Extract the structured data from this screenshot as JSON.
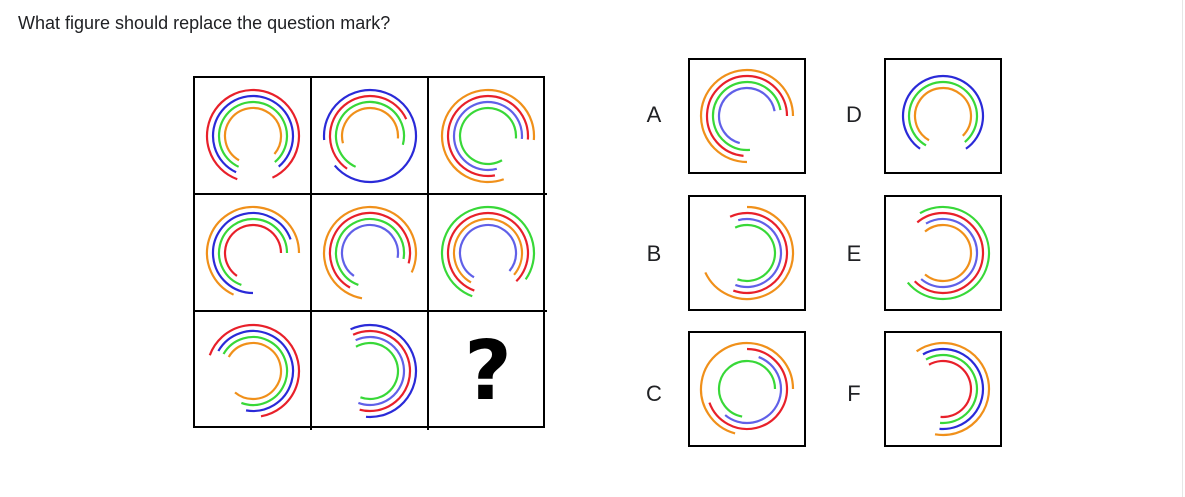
{
  "question": "What figure should replace the question mark?",
  "placeholder": "?",
  "colors": {
    "red": "#e8202a",
    "blue": "#2a2ad8",
    "green": "#38d838",
    "orange": "#f0901a",
    "violet": "#6060e8"
  },
  "grid": [
    {
      "rings": [
        [
          "red",
          200,
          515
        ],
        [
          "blue",
          205,
          500
        ],
        [
          "green",
          205,
          500
        ],
        [
          "orange",
          210,
          490
        ]
      ]
    },
    {
      "rings": [
        [
          "blue",
          265,
          590
        ],
        [
          "red",
          215,
          425
        ],
        [
          "green",
          205,
          465
        ],
        [
          "orange",
          255,
          455
        ]
      ]
    },
    {
      "rings": [
        [
          "orange",
          160,
          455
        ],
        [
          "red",
          170,
          455
        ],
        [
          "violet",
          165,
          455
        ],
        [
          "green",
          150,
          455
        ]
      ]
    },
    {
      "rings": [
        [
          "orange",
          205,
          450
        ],
        [
          "blue",
          180,
          430
        ],
        [
          "green",
          200,
          450
        ],
        [
          "red",
          215,
          450
        ]
      ]
    },
    {
      "rings": [
        [
          "orange",
          190,
          475
        ],
        [
          "red",
          210,
          465
        ],
        [
          "green",
          200,
          460
        ],
        [
          "violet",
          215,
          460
        ]
      ]
    },
    {
      "rings": [
        [
          "green",
          200,
          485
        ],
        [
          "red",
          200,
          495
        ],
        [
          "orange",
          210,
          490
        ],
        [
          "violet",
          210,
          490
        ]
      ]
    },
    {
      "rings": [
        [
          "red",
          290,
          530
        ],
        [
          "blue",
          300,
          550
        ],
        [
          "green",
          300,
          560
        ],
        [
          "orange",
          300,
          580
        ]
      ]
    },
    {
      "rings": [
        [
          "blue",
          335,
          545
        ],
        [
          "red",
          335,
          555
        ],
        [
          "violet",
          335,
          560
        ],
        [
          "green",
          330,
          560
        ]
      ]
    }
  ],
  "options": [
    {
      "label": "A",
      "rings": [
        [
          "orange",
          180,
          450
        ],
        [
          "red",
          185,
          450
        ],
        [
          "green",
          175,
          440
        ],
        [
          "violet",
          195,
          440
        ]
      ]
    },
    {
      "label": "B",
      "rings": [
        [
          "orange",
          0,
          245
        ],
        [
          "red",
          335,
          560
        ],
        [
          "violet",
          345,
          560
        ],
        [
          "green",
          335,
          560
        ]
      ]
    },
    {
      "label": "C",
      "rings": [
        [
          "orange",
          195,
          450
        ],
        [
          "red",
          0,
          250
        ],
        [
          "violet",
          20,
          220
        ],
        [
          "green",
          190,
          450
        ]
      ]
    },
    {
      "label": "D",
      "rings": [
        [
          "blue",
          215,
          505
        ],
        [
          "green",
          210,
          500
        ],
        [
          "orange",
          210,
          495
        ]
      ]
    },
    {
      "label": "E",
      "rings": [
        [
          "green",
          330,
          590
        ],
        [
          "red",
          320,
          585
        ],
        [
          "violet",
          330,
          580
        ],
        [
          "orange",
          320,
          580
        ]
      ]
    },
    {
      "label": "F",
      "rings": [
        [
          "orange",
          325,
          550
        ],
        [
          "blue",
          330,
          545
        ],
        [
          "green",
          330,
          545
        ],
        [
          "red",
          330,
          545
        ]
      ]
    }
  ]
}
